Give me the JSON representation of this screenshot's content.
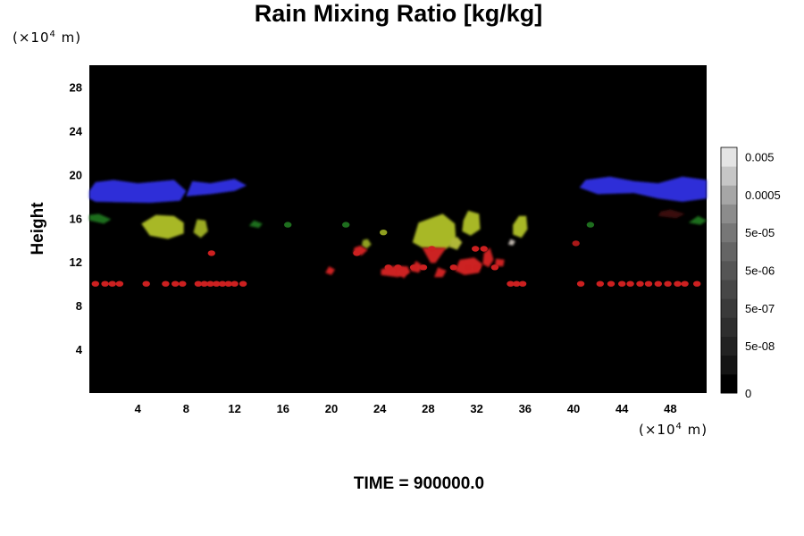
{
  "chart_data": {
    "type": "heatmap",
    "title": "Rain Mixing Ratio [kg/kg]",
    "ylabel": "Height",
    "x_unit": {
      "base": "(×10",
      "exp": "4",
      "tail": " m)"
    },
    "y_unit": {
      "base": "(×10",
      "exp": "4",
      "tail": " m)"
    },
    "xlim": [
      0,
      51
    ],
    "ylim": [
      0,
      30
    ],
    "x_ticks": [
      "4",
      "8",
      "12",
      "16",
      "20",
      "24",
      "28",
      "32",
      "36",
      "40",
      "44",
      "48"
    ],
    "x_tick_values": [
      4,
      8,
      12,
      16,
      20,
      24,
      28,
      32,
      36,
      40,
      44,
      48
    ],
    "y_ticks": [
      "4",
      "8",
      "12",
      "16",
      "20",
      "24",
      "28"
    ],
    "y_tick_values": [
      4,
      8,
      12,
      16,
      20,
      24,
      28
    ],
    "colorbar": {
      "labels": [
        "0.005",
        "0.0005",
        "5e-05",
        "5e-06",
        "5e-07",
        "5e-08",
        "0"
      ],
      "label_positions": [
        12.5,
        10.5,
        8.5,
        6.5,
        4.5,
        2.5,
        0
      ],
      "levels": 13,
      "colors": [
        "#000000",
        "#141414",
        "#222222",
        "#2e2e2e",
        "#3a3a3a",
        "#474747",
        "#555555",
        "#656565",
        "#777777",
        "#8c8c8c",
        "#a6a6a6",
        "#c6c6c6",
        "#e4e4e4"
      ]
    },
    "features": [
      {
        "kind": "blob",
        "color": "#2f2fd8",
        "points": [
          [
            0,
            18.5
          ],
          [
            0,
            17.8
          ],
          [
            0.5,
            17.5
          ],
          [
            5,
            17.4
          ],
          [
            7.5,
            17.6
          ],
          [
            8,
            18.5
          ],
          [
            7,
            19.5
          ],
          [
            4,
            19.2
          ],
          [
            2,
            19.5
          ],
          [
            0.5,
            19.3
          ]
        ]
      },
      {
        "kind": "blob",
        "color": "#2f2fd8",
        "points": [
          [
            8,
            18
          ],
          [
            10,
            18.2
          ],
          [
            12,
            18.5
          ],
          [
            13,
            19
          ],
          [
            12,
            19.6
          ],
          [
            10,
            19.2
          ],
          [
            8.5,
            19.4
          ]
        ]
      },
      {
        "kind": "blob",
        "color": "#2f2fd8",
        "points": [
          [
            40.5,
            18.8
          ],
          [
            42,
            18.2
          ],
          [
            45,
            18.3
          ],
          [
            47,
            17.8
          ],
          [
            49,
            17.5
          ],
          [
            51,
            17.8
          ],
          [
            51,
            19.5
          ],
          [
            49,
            19.8
          ],
          [
            47,
            19.2
          ],
          [
            45,
            19.4
          ],
          [
            43,
            19.8
          ],
          [
            41,
            19.5
          ]
        ]
      },
      {
        "kind": "blob",
        "color": "#a8b826",
        "points": [
          [
            4.3,
            15.5
          ],
          [
            5,
            14.4
          ],
          [
            6.5,
            14.1
          ],
          [
            7.8,
            14.6
          ],
          [
            7.8,
            15.6
          ],
          [
            7,
            16.2
          ],
          [
            5.5,
            16.3
          ]
        ]
      },
      {
        "kind": "blob",
        "color": "#9aaa20",
        "points": [
          [
            8.6,
            14.7
          ],
          [
            9.2,
            14.2
          ],
          [
            9.8,
            14.8
          ],
          [
            9.6,
            15.8
          ],
          [
            8.9,
            15.9
          ]
        ]
      },
      {
        "kind": "blob",
        "color": "#a8b826",
        "points": [
          [
            26.7,
            13.8
          ],
          [
            27.5,
            13.3
          ],
          [
            29.5,
            13.2
          ],
          [
            30.3,
            13.9
          ],
          [
            30.2,
            15.5
          ],
          [
            29.2,
            16.4
          ],
          [
            28.2,
            16
          ],
          [
            27.2,
            15.6
          ]
        ]
      },
      {
        "kind": "blob",
        "color": "#a8b826",
        "points": [
          [
            30.8,
            14.8
          ],
          [
            31.5,
            14.4
          ],
          [
            32.3,
            15
          ],
          [
            32.2,
            16.4
          ],
          [
            31.3,
            16.7
          ],
          [
            30.9,
            15.8
          ]
        ]
      },
      {
        "kind": "blob",
        "color": "#a8b826",
        "points": [
          [
            35,
            14.5
          ],
          [
            35.7,
            14.2
          ],
          [
            36.2,
            15
          ],
          [
            36.1,
            16.2
          ],
          [
            35.5,
            16.2
          ],
          [
            35,
            15.4
          ]
        ]
      },
      {
        "kind": "blob",
        "color": "#90a020",
        "points": [
          [
            22.5,
            13.5
          ],
          [
            22.9,
            13.2
          ],
          [
            23.3,
            13.6
          ],
          [
            23,
            14.1
          ],
          [
            22.6,
            14
          ]
        ]
      },
      {
        "kind": "blob",
        "color": "#b0b838",
        "points": [
          [
            29.7,
            13.4
          ],
          [
            30.4,
            13.1
          ],
          [
            30.8,
            13.8
          ],
          [
            30.4,
            14.3
          ],
          [
            29.9,
            14.1
          ]
        ]
      },
      {
        "kind": "blob",
        "color": "#cc2020",
        "points": [
          [
            27.5,
            13.3
          ],
          [
            29.5,
            13.3
          ],
          [
            28.6,
            11.9
          ],
          [
            28.2,
            11.9
          ]
        ]
      },
      {
        "kind": "blob",
        "color": "#cc2020",
        "points": [
          [
            30.2,
            11.2
          ],
          [
            31,
            10.8
          ],
          [
            32.2,
            11
          ],
          [
            32.5,
            11.8
          ],
          [
            31.8,
            12.4
          ],
          [
            30.6,
            12.2
          ]
        ]
      },
      {
        "kind": "blob",
        "color": "#cc2020",
        "points": [
          [
            32.5,
            11.8
          ],
          [
            33,
            11.5
          ],
          [
            33.4,
            12.2
          ],
          [
            33.1,
            13.3
          ],
          [
            32.6,
            12.8
          ]
        ]
      },
      {
        "kind": "blob",
        "color": "#cc2020",
        "points": [
          [
            21.8,
            12.8
          ],
          [
            22.5,
            12.6
          ],
          [
            23,
            13.1
          ],
          [
            22.4,
            13.5
          ],
          [
            21.9,
            13.3
          ]
        ]
      },
      {
        "kind": "blob",
        "color": "#cc2020",
        "points": [
          [
            24.1,
            10.8
          ],
          [
            25.5,
            10.6
          ],
          [
            26.5,
            11
          ],
          [
            26.3,
            11.6
          ],
          [
            24.8,
            11.6
          ],
          [
            24.1,
            11.3
          ]
        ]
      },
      {
        "kind": "blob",
        "color": "#cc2020",
        "points": [
          [
            19.5,
            11
          ],
          [
            20,
            10.8
          ],
          [
            20.3,
            11.3
          ],
          [
            19.8,
            11.6
          ]
        ]
      },
      {
        "kind": "blob",
        "color": "#b8b0a8",
        "points": [
          [
            34.6,
            13.6
          ],
          [
            35,
            13.5
          ],
          [
            35.2,
            13.9
          ],
          [
            34.8,
            14.1
          ]
        ]
      },
      {
        "kind": "blob",
        "color": "#cc2020",
        "points": [
          [
            26.5,
            11.2
          ],
          [
            27.2,
            11
          ],
          [
            27.6,
            11.6
          ],
          [
            27,
            12.1
          ]
        ]
      },
      {
        "kind": "blob",
        "color": "#cc2020",
        "points": [
          [
            28.5,
            10.6
          ],
          [
            29.2,
            10.6
          ],
          [
            29.5,
            11.2
          ],
          [
            28.8,
            11.5
          ]
        ]
      },
      {
        "kind": "blob",
        "color": "#cc2020",
        "points": [
          [
            33.5,
            11.6
          ],
          [
            34.2,
            11.6
          ],
          [
            34.3,
            12.2
          ],
          [
            33.6,
            12.3
          ]
        ]
      },
      {
        "kind": "blob",
        "color": "#cc2020",
        "points": [
          [
            25.4,
            11
          ],
          [
            26,
            10.5
          ],
          [
            26.4,
            11.1
          ],
          [
            25.8,
            11.6
          ]
        ]
      },
      {
        "kind": "blob",
        "color": "#1e6e1e",
        "points": [
          [
            0,
            15.8
          ],
          [
            1.2,
            15.5
          ],
          [
            1.8,
            15.9
          ],
          [
            0.8,
            16.4
          ],
          [
            0,
            16.3
          ]
        ]
      },
      {
        "kind": "blob",
        "color": "#1e6e1e",
        "points": [
          [
            13.2,
            15.3
          ],
          [
            14,
            15.1
          ],
          [
            14.3,
            15.5
          ],
          [
            13.6,
            15.8
          ]
        ]
      },
      {
        "kind": "blob",
        "color": "#1e6e1e",
        "points": [
          [
            49.5,
            15.6
          ],
          [
            50.5,
            15.4
          ],
          [
            51,
            15.8
          ],
          [
            50.3,
            16.2
          ]
        ]
      },
      {
        "kind": "blob",
        "color": "#3a1010",
        "points": [
          [
            47,
            16.2
          ],
          [
            48.5,
            16
          ],
          [
            49.2,
            16.4
          ],
          [
            48,
            16.8
          ],
          [
            47.2,
            16.6
          ]
        ]
      },
      {
        "kind": "dots",
        "color": "#cc2020",
        "y": 10,
        "spots": [
          0.5,
          1.3,
          1.9,
          2.5,
          4.7,
          6.3,
          7.1,
          7.7,
          9.0,
          9.5,
          10.0,
          10.5,
          11,
          11.5,
          12,
          12.7,
          34.8,
          35.3,
          35.8,
          40.6,
          42.2,
          43.1,
          44.0,
          44.7,
          45.5,
          46.2,
          47.0,
          47.8,
          48.6,
          49.2,
          50.2
        ]
      },
      {
        "kind": "dots",
        "color": "#cc2020",
        "y": 11.5,
        "spots": [
          24.7,
          25.5,
          26.8,
          27.6,
          30.1,
          31.3,
          32.0,
          33.5
        ]
      },
      {
        "kind": "dots",
        "color": "#cc2020",
        "y": 13.2,
        "spots": [
          28.3,
          31.9,
          32.6
        ]
      },
      {
        "kind": "dots",
        "color": "#cc2020",
        "y": 12.8,
        "spots": [
          10.1,
          22.1
        ]
      },
      {
        "kind": "dots",
        "color": "#aa1818",
        "y": 13.7,
        "spots": [
          40.2
        ]
      },
      {
        "kind": "dots",
        "color": "#90a020",
        "y": 14.7,
        "spots": [
          24.3
        ]
      },
      {
        "kind": "dots",
        "color": "#1e6e1e",
        "y": 15.4,
        "spots": [
          16.4,
          21.2,
          41.4
        ]
      }
    ]
  },
  "footer": {
    "time_label": "TIME = 900000.0"
  }
}
